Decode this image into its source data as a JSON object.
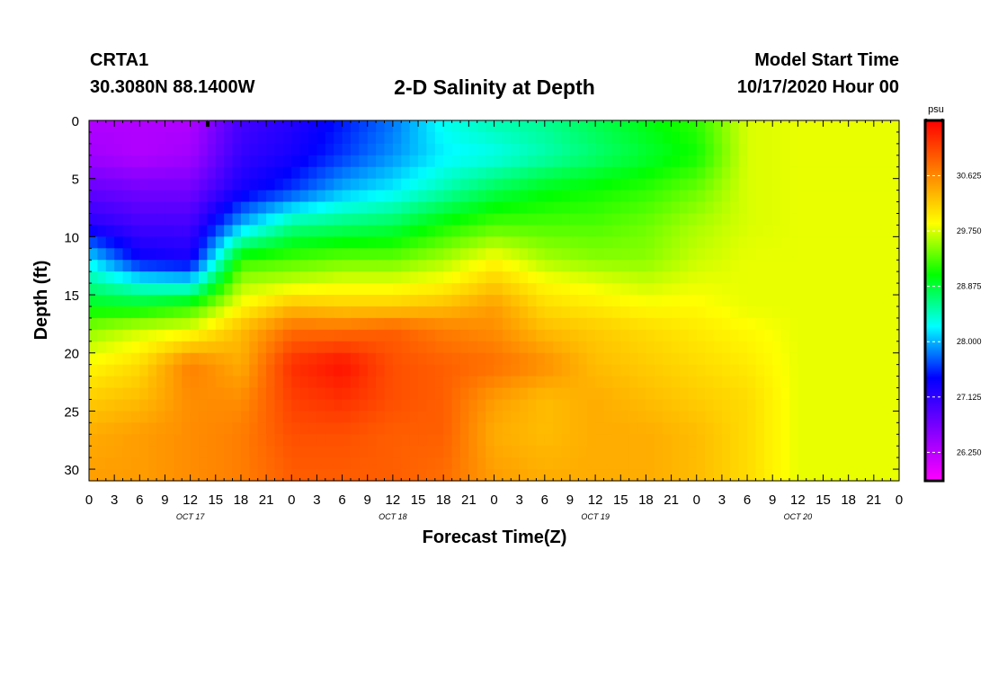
{
  "header": {
    "station": "CRTA1",
    "coords": "30.3080N 88.1400W",
    "title": "2-D Salinity at Depth",
    "model_start_label": "Model Start Time",
    "model_start_value": "10/17/2020 Hour 00"
  },
  "chart_data": {
    "type": "heatmap",
    "title": "2-D Salinity at Depth",
    "xlabel": "Forecast Time(Z)",
    "ylabel": "Depth (ft)",
    "x_tick_labels": [
      "0",
      "3",
      "6",
      "9",
      "12",
      "15",
      "18",
      "21",
      "0",
      "3",
      "6",
      "9",
      "12",
      "15",
      "18",
      "21",
      "0",
      "3",
      "6",
      "9",
      "12",
      "15",
      "18",
      "21",
      "0",
      "3",
      "6",
      "9",
      "12",
      "15",
      "18",
      "21",
      "0"
    ],
    "day_labels": [
      {
        "text": "OCT 17",
        "hour": 12
      },
      {
        "text": "OCT 18",
        "hour": 36
      },
      {
        "text": "OCT 19",
        "hour": 60
      },
      {
        "text": "OCT 20",
        "hour": 84
      }
    ],
    "xlim_hours": [
      0,
      96
    ],
    "ylim_ft": [
      0,
      31
    ],
    "y_inverted": true,
    "y_ticks": [
      0,
      5,
      10,
      15,
      20,
      25,
      30
    ],
    "colorbar": {
      "unit": "psu",
      "range": [
        25.8,
        31.5
      ],
      "tick_values": [
        26.25,
        27.125,
        28.0,
        28.875,
        29.75,
        30.625
      ],
      "tick_labels": [
        "26.250",
        "27.125",
        "28.000",
        "28.875",
        "29.750",
        "30.625"
      ],
      "colors": [
        "#ff00ff",
        "#8000ff",
        "#0000ff",
        "#00ffff",
        "#00ff00",
        "#ffff00",
        "#ff8000",
        "#ff0000"
      ]
    },
    "grid": {
      "hours": [
        0,
        6,
        12,
        18,
        24,
        30,
        36,
        42,
        48,
        54,
        60,
        66,
        72,
        78,
        84,
        90,
        96
      ],
      "depths": [
        0,
        3,
        6,
        9,
        12,
        14,
        16,
        18,
        21,
        24,
        27,
        31
      ],
      "salinity": [
        [
          26.3,
          26.3,
          26.3,
          27.0,
          27.2,
          27.5,
          27.8,
          28.3,
          28.5,
          28.6,
          28.8,
          29.0,
          29.2,
          29.75,
          29.8,
          29.8,
          29.8
        ],
        [
          26.4,
          26.3,
          26.4,
          27.1,
          27.3,
          27.6,
          27.9,
          28.2,
          28.3,
          28.5,
          28.7,
          28.9,
          29.1,
          29.75,
          29.8,
          29.8,
          29.8
        ],
        [
          26.8,
          26.7,
          26.7,
          27.3,
          27.6,
          28.0,
          28.2,
          28.5,
          28.8,
          29.0,
          29.1,
          29.2,
          29.4,
          29.75,
          29.8,
          29.8,
          29.8
        ],
        [
          27.2,
          27.0,
          27.0,
          28.0,
          28.6,
          28.7,
          28.8,
          29.1,
          29.3,
          29.3,
          29.3,
          29.4,
          29.6,
          29.75,
          29.8,
          29.8,
          29.8
        ],
        [
          28.2,
          27.4,
          27.3,
          29.2,
          29.3,
          29.4,
          29.4,
          29.6,
          29.9,
          29.6,
          29.5,
          29.5,
          29.7,
          29.8,
          29.8,
          29.8,
          29.8
        ],
        [
          28.6,
          28.3,
          28.2,
          29.6,
          29.7,
          29.8,
          29.8,
          29.9,
          30.2,
          29.9,
          29.8,
          29.7,
          29.8,
          29.8,
          29.8,
          29.8,
          29.8
        ],
        [
          29.0,
          29.0,
          29.2,
          29.9,
          30.3,
          30.2,
          30.2,
          30.3,
          30.5,
          30.1,
          30.0,
          29.9,
          29.9,
          29.8,
          29.8,
          29.8,
          29.8
        ],
        [
          29.5,
          29.7,
          29.8,
          30.3,
          30.8,
          30.8,
          30.9,
          30.7,
          30.6,
          30.3,
          30.2,
          30.1,
          30.0,
          29.9,
          29.8,
          29.8,
          29.8
        ],
        [
          29.9,
          30.1,
          30.7,
          30.4,
          31.2,
          31.4,
          31.0,
          30.9,
          30.8,
          30.6,
          30.3,
          30.2,
          30.1,
          30.0,
          29.8,
          29.8,
          29.8
        ],
        [
          30.2,
          30.3,
          30.6,
          30.6,
          31.1,
          31.2,
          31.0,
          30.9,
          30.5,
          30.3,
          30.4,
          30.3,
          30.2,
          30.1,
          29.8,
          29.8,
          29.8
        ],
        [
          30.4,
          30.5,
          30.6,
          30.7,
          31.0,
          31.0,
          30.9,
          30.9,
          30.4,
          30.3,
          30.4,
          30.4,
          30.3,
          30.1,
          29.8,
          29.8,
          29.8
        ],
        [
          30.5,
          30.5,
          30.6,
          30.7,
          30.9,
          30.9,
          30.9,
          30.8,
          30.5,
          30.4,
          30.4,
          30.4,
          30.3,
          30.1,
          29.8,
          29.8,
          29.8
        ]
      ]
    }
  }
}
